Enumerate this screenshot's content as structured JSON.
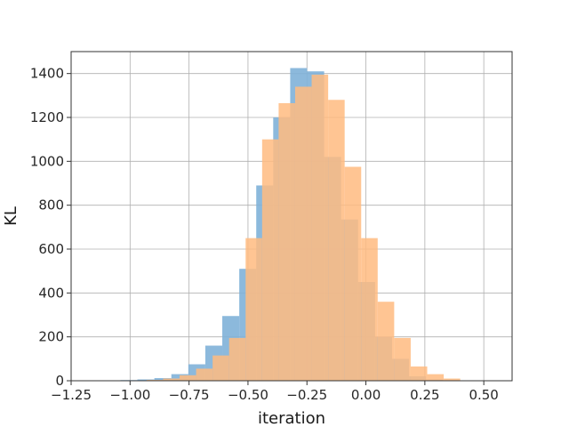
{
  "chart_data": {
    "type": "bar",
    "title": "",
    "xlabel": "iteration",
    "ylabel": "KL",
    "xlim": [
      -1.25,
      0.62
    ],
    "ylim": [
      0,
      1500
    ],
    "x_ticks": [
      -1.25,
      -1.0,
      -0.75,
      -0.5,
      -0.25,
      0.0,
      0.25,
      0.5
    ],
    "x_tick_labels": [
      "−1.25",
      "−1.00",
      "−0.75",
      "−0.50",
      "−0.25",
      "0.00",
      "0.25",
      "0.50"
    ],
    "y_ticks": [
      0,
      200,
      400,
      600,
      800,
      1000,
      1200,
      1400
    ],
    "y_tick_labels": [
      "0",
      "200",
      "400",
      "600",
      "800",
      "1000",
      "1200",
      "1400"
    ],
    "grid": true,
    "legend": "none",
    "overlap_color": "#c49a6c",
    "series": [
      {
        "color": "#7fb1d8",
        "bin_edges": [
          -1.185,
          -1.113,
          -1.041,
          -0.969,
          -0.897,
          -0.825,
          -0.753,
          -0.681,
          -0.609,
          -0.537,
          -0.465,
          -0.393,
          -0.321,
          -0.249,
          -0.177,
          -0.105,
          -0.033,
          0.039,
          0.111,
          0.183,
          0.255,
          0.327
        ],
        "values": [
          1,
          2,
          3,
          6,
          12,
          30,
          75,
          160,
          295,
          510,
          890,
          1200,
          1425,
          1410,
          1020,
          735,
          450,
          200,
          100,
          20,
          5
        ]
      },
      {
        "color": "#ffbb80",
        "bin_edges": [
          -1.0,
          -0.93,
          -0.86,
          -0.79,
          -0.72,
          -0.65,
          -0.58,
          -0.51,
          -0.44,
          -0.37,
          -0.3,
          -0.23,
          -0.16,
          -0.09,
          -0.02,
          0.05,
          0.12,
          0.19,
          0.26,
          0.33,
          0.4
        ],
        "values": [
          1,
          4,
          10,
          25,
          55,
          115,
          195,
          650,
          1100,
          1265,
          1340,
          1395,
          1280,
          975,
          650,
          360,
          195,
          65,
          30,
          10
        ]
      }
    ]
  }
}
